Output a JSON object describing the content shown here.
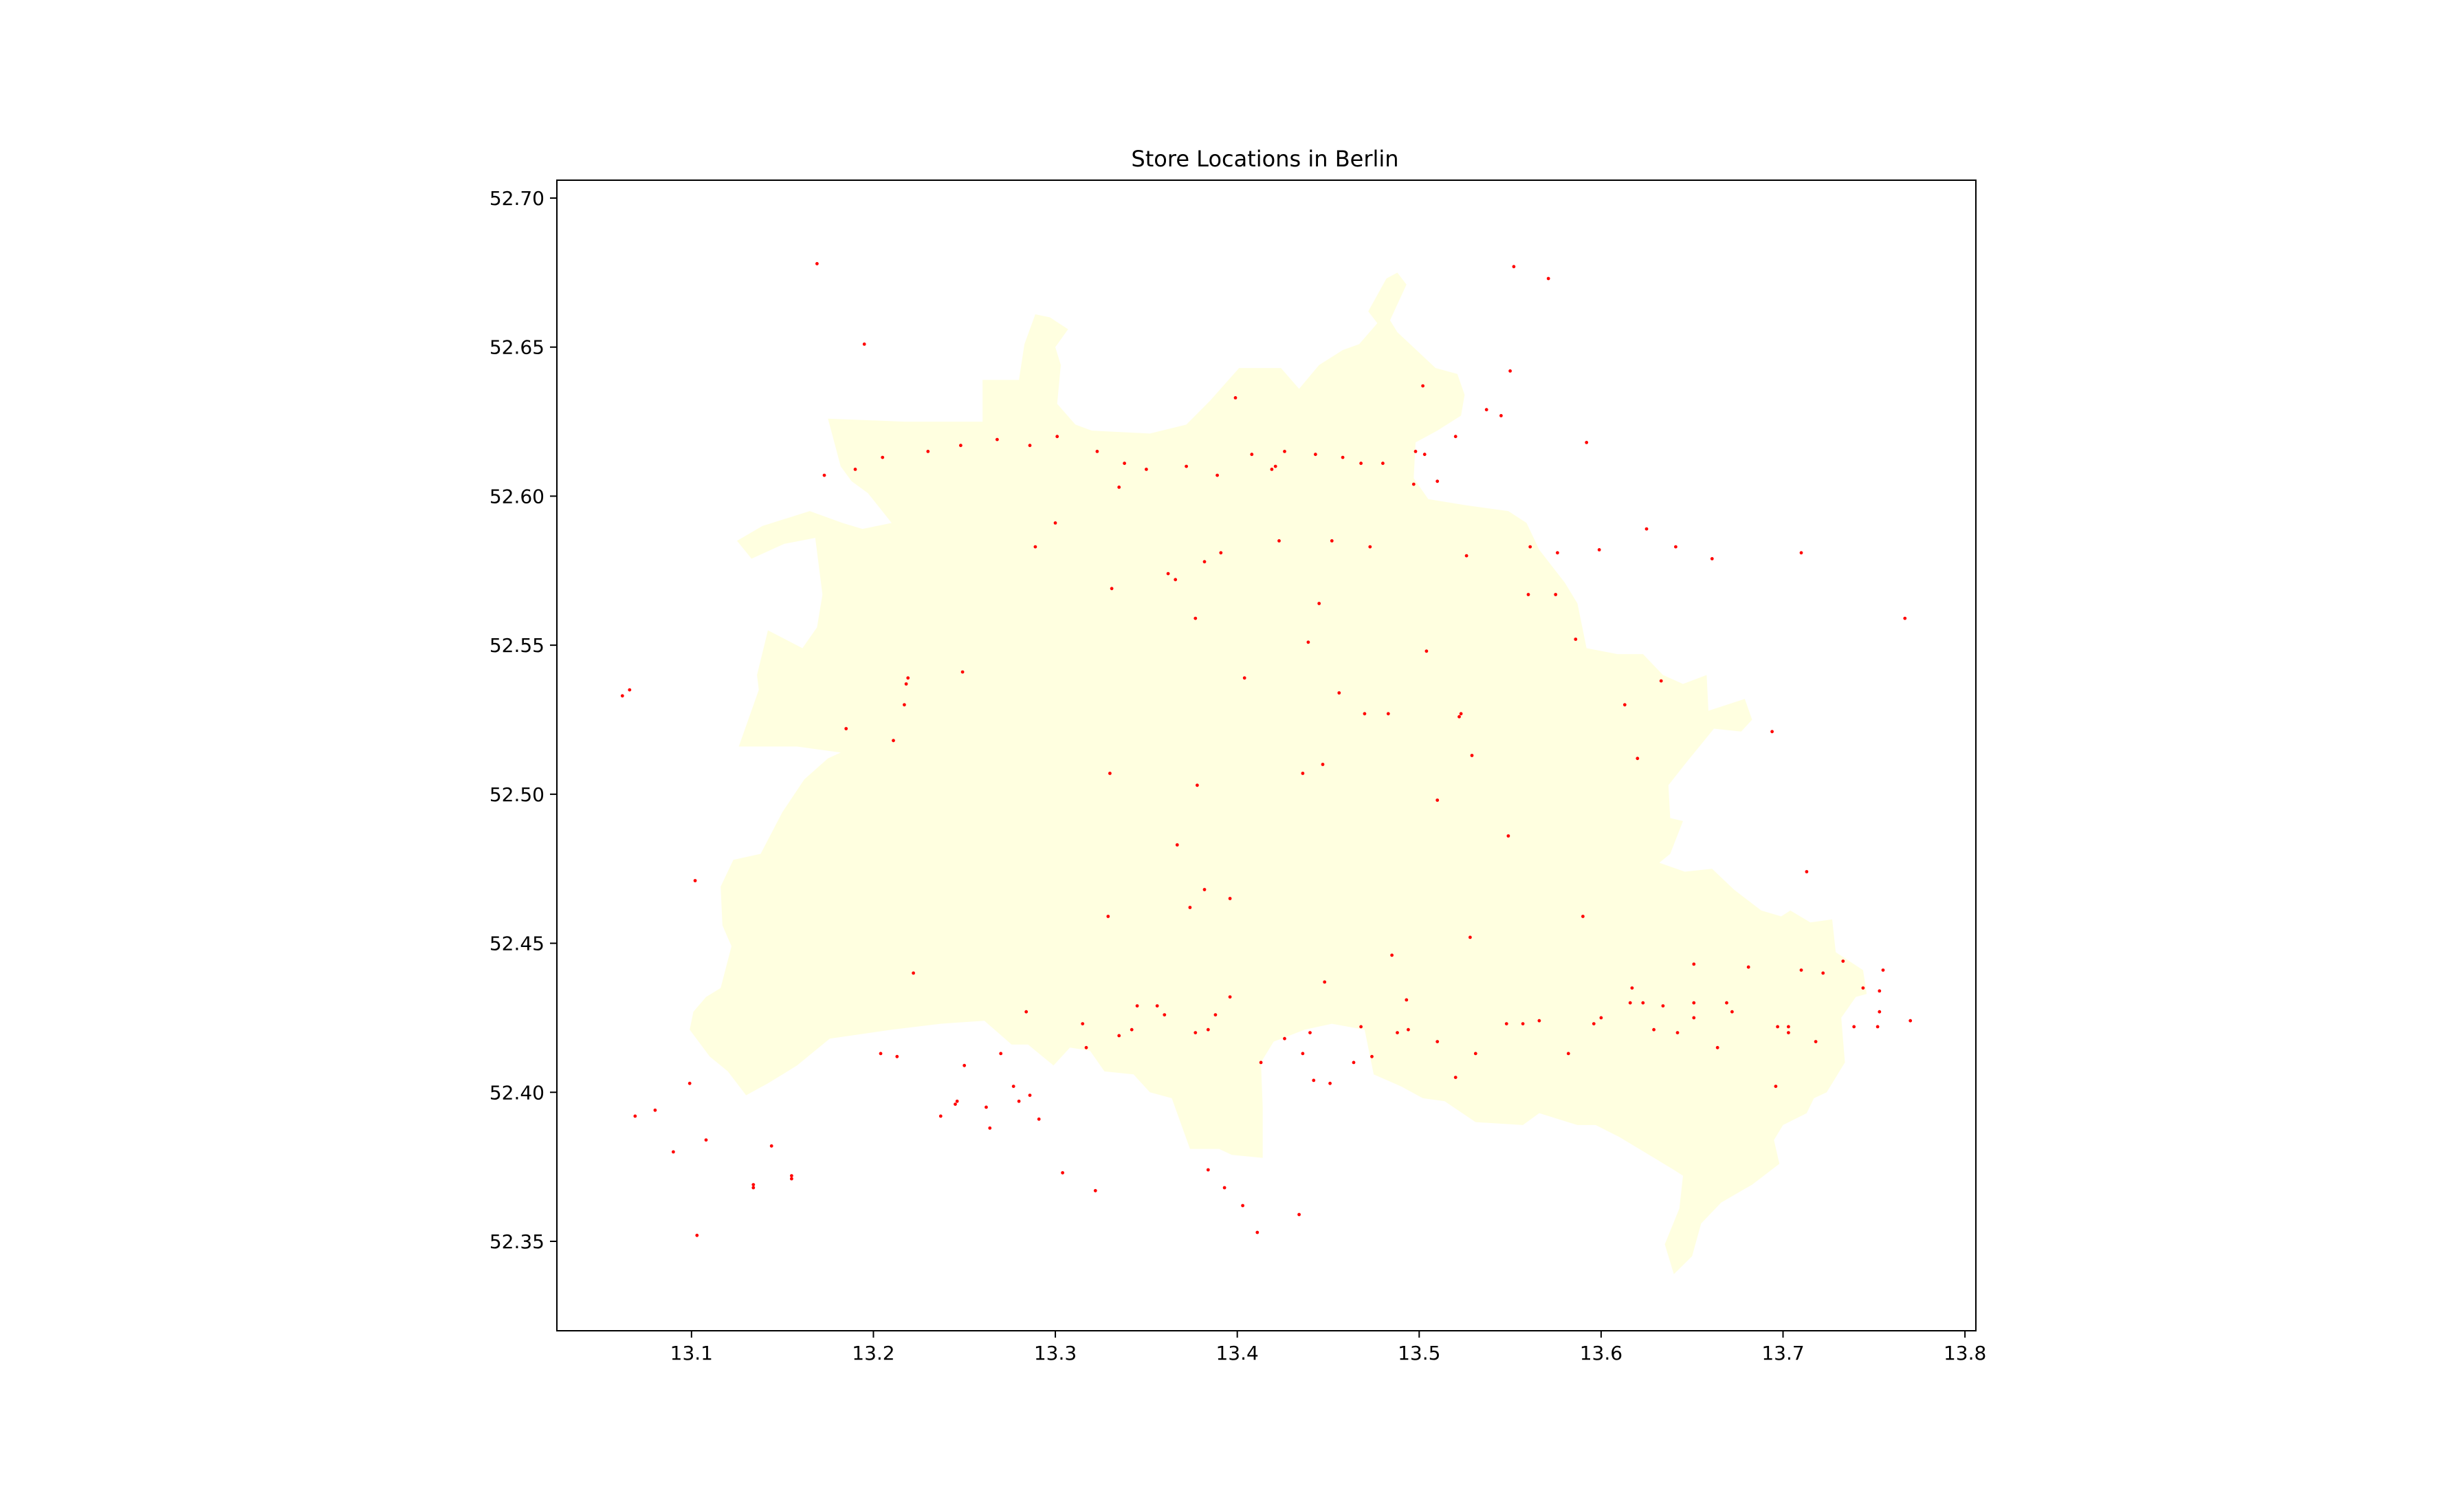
{
  "chart_data": {
    "type": "scatter",
    "title": "Store Locations in Berlin",
    "xlabel": "",
    "ylabel": "",
    "xlim": [
      13.026,
      13.806
    ],
    "ylim": [
      52.32,
      52.706
    ],
    "xticks": [
      {
        "value": 13.1,
        "label": "13.1"
      },
      {
        "value": 13.2,
        "label": "13.2"
      },
      {
        "value": 13.3,
        "label": "13.3"
      },
      {
        "value": 13.4,
        "label": "13.4"
      },
      {
        "value": 13.5,
        "label": "13.5"
      },
      {
        "value": 13.6,
        "label": "13.6"
      },
      {
        "value": 13.7,
        "label": "13.7"
      },
      {
        "value": 13.8,
        "label": "13.8"
      }
    ],
    "yticks": [
      {
        "value": 52.35,
        "label": "52.35"
      },
      {
        "value": 52.4,
        "label": "52.40"
      },
      {
        "value": 52.45,
        "label": "52.45"
      },
      {
        "value": 52.5,
        "label": "52.50"
      },
      {
        "value": 52.55,
        "label": "52.55"
      },
      {
        "value": 52.6,
        "label": "52.60"
      },
      {
        "value": 52.65,
        "label": "52.65"
      },
      {
        "value": 52.7,
        "label": "52.70"
      }
    ],
    "grid": false,
    "boundary": {
      "fill": "#ffffe0",
      "outline": [
        [
          13.175,
          52.626
        ],
        [
          13.217,
          52.625
        ],
        [
          13.26,
          52.625
        ],
        [
          13.26,
          52.639
        ],
        [
          13.28,
          52.639
        ],
        [
          13.283,
          52.651
        ],
        [
          13.289,
          52.661
        ],
        [
          13.297,
          52.66
        ],
        [
          13.307,
          52.656
        ],
        [
          13.3,
          52.65
        ],
        [
          13.303,
          52.644
        ],
        [
          13.301,
          52.631
        ],
        [
          13.311,
          52.624
        ],
        [
          13.32,
          52.622
        ],
        [
          13.352,
          52.621
        ],
        [
          13.372,
          52.624
        ],
        [
          13.385,
          52.632
        ],
        [
          13.401,
          52.643
        ],
        [
          13.424,
          52.643
        ],
        [
          13.434,
          52.636
        ],
        [
          13.445,
          52.644
        ],
        [
          13.458,
          52.649
        ],
        [
          13.467,
          52.651
        ],
        [
          13.477,
          52.658
        ],
        [
          13.472,
          52.662
        ],
        [
          13.482,
          52.673
        ],
        [
          13.488,
          52.675
        ],
        [
          13.493,
          52.671
        ],
        [
          13.484,
          52.659
        ],
        [
          13.488,
          52.655
        ],
        [
          13.509,
          52.643
        ],
        [
          13.521,
          52.641
        ],
        [
          13.525,
          52.634
        ],
        [
          13.523,
          52.627
        ],
        [
          13.51,
          52.622
        ],
        [
          13.498,
          52.618
        ],
        [
          13.497,
          52.606
        ],
        [
          13.505,
          52.599
        ],
        [
          13.525,
          52.597
        ],
        [
          13.549,
          52.595
        ],
        [
          13.559,
          52.591
        ],
        [
          13.566,
          52.582
        ],
        [
          13.58,
          52.571
        ],
        [
          13.587,
          52.564
        ],
        [
          13.592,
          52.549
        ],
        [
          13.609,
          52.547
        ],
        [
          13.623,
          52.547
        ],
        [
          13.634,
          52.54
        ],
        [
          13.645,
          52.537
        ],
        [
          13.658,
          52.54
        ],
        [
          13.659,
          52.528
        ],
        [
          13.679,
          52.532
        ],
        [
          13.683,
          52.525
        ],
        [
          13.677,
          52.521
        ],
        [
          13.662,
          52.522
        ],
        [
          13.646,
          52.51
        ],
        [
          13.637,
          52.503
        ],
        [
          13.638,
          52.492
        ],
        [
          13.645,
          52.491
        ],
        [
          13.638,
          52.48
        ],
        [
          13.632,
          52.477
        ],
        [
          13.646,
          52.474
        ],
        [
          13.661,
          52.475
        ],
        [
          13.673,
          52.468
        ],
        [
          13.688,
          52.461
        ],
        [
          13.699,
          52.459
        ],
        [
          13.704,
          52.461
        ],
        [
          13.715,
          52.457
        ],
        [
          13.727,
          52.458
        ],
        [
          13.729,
          52.447
        ],
        [
          13.744,
          52.441
        ],
        [
          13.746,
          52.433
        ],
        [
          13.74,
          52.432
        ],
        [
          13.732,
          52.425
        ],
        [
          13.734,
          52.41
        ],
        [
          13.724,
          52.4
        ],
        [
          13.717,
          52.398
        ],
        [
          13.713,
          52.393
        ],
        [
          13.7,
          52.389
        ],
        [
          13.695,
          52.384
        ],
        [
          13.698,
          52.376
        ],
        [
          13.683,
          52.369
        ],
        [
          13.666,
          52.363
        ],
        [
          13.655,
          52.356
        ],
        [
          13.65,
          52.345
        ],
        [
          13.64,
          52.339
        ],
        [
          13.635,
          52.349
        ],
        [
          13.643,
          52.361
        ],
        [
          13.645,
          52.372
        ],
        [
          13.64,
          52.374
        ],
        [
          13.61,
          52.385
        ],
        [
          13.597,
          52.389
        ],
        [
          13.587,
          52.389
        ],
        [
          13.566,
          52.393
        ],
        [
          13.557,
          52.389
        ],
        [
          13.531,
          52.39
        ],
        [
          13.514,
          52.397
        ],
        [
          13.502,
          52.398
        ],
        [
          13.49,
          52.402
        ],
        [
          13.475,
          52.406
        ],
        [
          13.47,
          52.421
        ],
        [
          13.452,
          52.423
        ],
        [
          13.437,
          52.421
        ],
        [
          13.42,
          52.417
        ],
        [
          13.413,
          52.41
        ],
        [
          13.414,
          52.395
        ],
        [
          13.414,
          52.378
        ],
        [
          13.397,
          52.379
        ],
        [
          13.39,
          52.381
        ],
        [
          13.374,
          52.381
        ],
        [
          13.364,
          52.398
        ],
        [
          13.352,
          52.4
        ],
        [
          13.343,
          52.406
        ],
        [
          13.327,
          52.407
        ],
        [
          13.319,
          52.414
        ],
        [
          13.308,
          52.415
        ],
        [
          13.299,
          52.409
        ],
        [
          13.285,
          52.416
        ],
        [
          13.276,
          52.416
        ],
        [
          13.261,
          52.424
        ],
        [
          13.237,
          52.423
        ],
        [
          13.21,
          52.421
        ],
        [
          13.176,
          52.418
        ],
        [
          13.158,
          52.409
        ],
        [
          13.142,
          52.403
        ],
        [
          13.13,
          52.399
        ],
        [
          13.12,
          52.407
        ],
        [
          13.11,
          52.412
        ],
        [
          13.099,
          52.421
        ],
        [
          13.101,
          52.427
        ],
        [
          13.108,
          52.432
        ],
        [
          13.116,
          52.435
        ],
        [
          13.122,
          52.449
        ],
        [
          13.117,
          52.456
        ],
        [
          13.116,
          52.469
        ],
        [
          13.123,
          52.478
        ],
        [
          13.138,
          52.48
        ],
        [
          13.15,
          52.494
        ],
        [
          13.162,
          52.505
        ],
        [
          13.175,
          52.512
        ],
        [
          13.182,
          52.514
        ],
        [
          13.158,
          52.516
        ],
        [
          13.126,
          52.516
        ],
        [
          13.137,
          52.535
        ],
        [
          13.136,
          52.54
        ],
        [
          13.142,
          52.555
        ],
        [
          13.161,
          52.549
        ],
        [
          13.169,
          52.556
        ],
        [
          13.172,
          52.567
        ],
        [
          13.168,
          52.586
        ],
        [
          13.151,
          52.584
        ],
        [
          13.133,
          52.579
        ],
        [
          13.125,
          52.585
        ],
        [
          13.139,
          52.59
        ],
        [
          13.165,
          52.595
        ],
        [
          13.183,
          52.591
        ],
        [
          13.194,
          52.589
        ],
        [
          13.21,
          52.591
        ],
        [
          13.197,
          52.601
        ],
        [
          13.188,
          52.605
        ],
        [
          13.182,
          52.61
        ],
        [
          13.175,
          52.626
        ]
      ]
    },
    "points": {
      "color": "#ff0000",
      "x": [
        13.331,
        13.335,
        13.366,
        13.377,
        13.445,
        13.456,
        13.404,
        13.439,
        13.47,
        13.483,
        13.504,
        13.523,
        13.522,
        13.529,
        13.447,
        13.436,
        13.51,
        13.549,
        13.56,
        13.575,
        13.586,
        13.613,
        13.62,
        13.633,
        13.219,
        13.218,
        13.217,
        13.249,
        13.185,
        13.211,
        13.33,
        13.378,
        13.382,
        13.374,
        13.396,
        13.367,
        13.329,
        13.222,
        13.315,
        13.262,
        13.448,
        13.485,
        13.528,
        13.59,
        13.617,
        13.651,
        13.664,
        13.696,
        13.703,
        13.713,
        13.246,
        13.28,
        13.264,
        13.277,
        13.245,
        13.213,
        13.102,
        13.069,
        13.134,
        13.169,
        13.195,
        13.289,
        13.3,
        13.399,
        13.419,
        13.502,
        13.51,
        13.552,
        13.571,
        13.625,
        13.694,
        13.752,
        13.753,
        13.767,
        13.09,
        13.08,
        13.108,
        13.144,
        13.155,
        13.204,
        13.237,
        13.25,
        13.27,
        13.286,
        13.291,
        13.317,
        13.335,
        13.342,
        13.36,
        13.384,
        13.388,
        13.396,
        13.413,
        13.426,
        13.436,
        13.442,
        13.451,
        13.464,
        13.474,
        13.488,
        13.494,
        13.51,
        13.52,
        13.531,
        13.548,
        13.557,
        13.582,
        13.6,
        13.616,
        13.623,
        13.634,
        13.642,
        13.651,
        13.669,
        13.681,
        13.71,
        13.722,
        13.744,
        13.755,
        13.733,
        13.103,
        13.134,
        13.099,
        13.155,
        13.284,
        13.345,
        13.356,
        13.377,
        13.44,
        13.468,
        13.493,
        13.566,
        13.596,
        13.629,
        13.651,
        13.672,
        13.697,
        13.703,
        13.718,
        13.739,
        13.753,
        13.77,
        13.537,
        13.55,
        13.545,
        13.592,
        13.52,
        13.503,
        13.498,
        13.497,
        13.48,
        13.468,
        13.458,
        13.443,
        13.426,
        13.421,
        13.408,
        13.389,
        13.372,
        13.35,
        13.338,
        13.323,
        13.301,
        13.286,
        13.268,
        13.248,
        13.23,
        13.205,
        13.19,
        13.173,
        13.066,
        13.062,
        13.382,
        13.362,
        13.391,
        13.423,
        13.452,
        13.473,
        13.526,
        13.561,
        13.576,
        13.599,
        13.641,
        13.661,
        13.71,
        13.411,
        13.434,
        13.403,
        13.393,
        13.384,
        13.322,
        13.304
      ],
      "y": [
        52.569,
        52.603,
        52.572,
        52.559,
        52.564,
        52.534,
        52.539,
        52.551,
        52.527,
        52.527,
        52.548,
        52.527,
        52.526,
        52.513,
        52.51,
        52.507,
        52.498,
        52.486,
        52.567,
        52.567,
        52.552,
        52.53,
        52.512,
        52.538,
        52.539,
        52.537,
        52.53,
        52.541,
        52.522,
        52.518,
        52.507,
        52.503,
        52.468,
        52.462,
        52.465,
        52.483,
        52.459,
        52.44,
        52.423,
        52.395,
        52.437,
        52.446,
        52.452,
        52.459,
        52.435,
        52.443,
        52.415,
        52.402,
        52.422,
        52.474,
        52.397,
        52.397,
        52.388,
        52.402,
        52.396,
        52.412,
        52.471,
        52.392,
        52.369,
        52.678,
        52.651,
        52.583,
        52.591,
        52.633,
        52.609,
        52.637,
        52.605,
        52.677,
        52.673,
        52.589,
        52.521,
        52.422,
        52.434,
        52.559,
        52.38,
        52.394,
        52.384,
        52.382,
        52.371,
        52.413,
        52.392,
        52.409,
        52.413,
        52.399,
        52.391,
        52.415,
        52.419,
        52.421,
        52.426,
        52.421,
        52.426,
        52.432,
        52.41,
        52.418,
        52.413,
        52.404,
        52.403,
        52.41,
        52.412,
        52.42,
        52.421,
        52.417,
        52.405,
        52.413,
        52.423,
        52.423,
        52.413,
        52.425,
        52.43,
        52.43,
        52.429,
        52.42,
        52.43,
        52.43,
        52.442,
        52.441,
        52.44,
        52.435,
        52.441,
        52.444,
        52.352,
        52.368,
        52.403,
        52.372,
        52.427,
        52.429,
        52.429,
        52.42,
        52.42,
        52.422,
        52.431,
        52.424,
        52.423,
        52.421,
        52.425,
        52.427,
        52.422,
        52.42,
        52.417,
        52.422,
        52.427,
        52.424,
        52.629,
        52.642,
        52.627,
        52.618,
        52.62,
        52.614,
        52.615,
        52.604,
        52.611,
        52.611,
        52.613,
        52.614,
        52.615,
        52.61,
        52.614,
        52.607,
        52.61,
        52.609,
        52.611,
        52.615,
        52.62,
        52.617,
        52.619,
        52.617,
        52.615,
        52.613,
        52.609,
        52.607,
        52.535,
        52.533,
        52.578,
        52.574,
        52.581,
        52.585,
        52.585,
        52.583,
        52.58,
        52.583,
        52.581,
        52.582,
        52.583,
        52.579,
        52.581,
        52.353,
        52.359,
        52.362,
        52.368,
        52.374,
        52.367,
        52.373
      ]
    }
  }
}
